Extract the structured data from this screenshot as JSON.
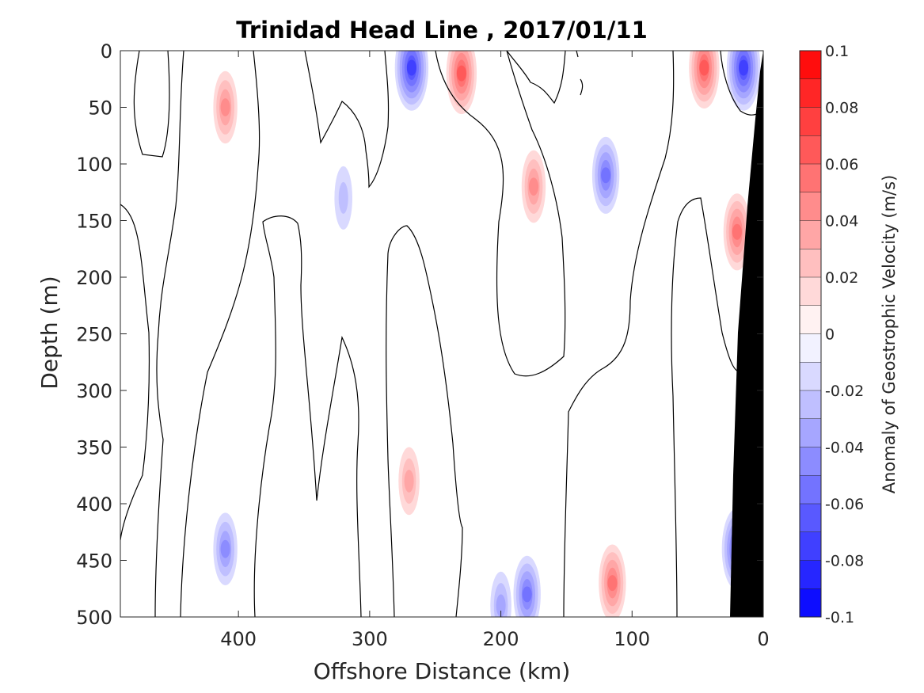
{
  "chart_data": {
    "type": "heatmap",
    "title": "Trinidad Head Line , 2017/01/11",
    "xlabel": "Offshore Distance (km)",
    "ylabel": "Depth (m)",
    "colorbar_label": "Anomaly of Geostrophic Velocity (m/s)",
    "xlim": [
      490,
      0
    ],
    "ylim": [
      500,
      0
    ],
    "x_ticks": [
      400,
      300,
      200,
      100,
      0
    ],
    "y_ticks": [
      0,
      50,
      100,
      150,
      200,
      250,
      300,
      350,
      400,
      450,
      500
    ],
    "colorbar_range": [
      -0.1,
      0.1
    ],
    "colorbar_ticks": [
      "0.1",
      "0.08",
      "0.06",
      "0.04",
      "0.02",
      "0",
      "-0.02",
      "-0.04",
      "-0.06",
      "-0.08",
      "-0.1"
    ],
    "colorbar_levels": 20,
    "colormap": {
      "negative": "#0000ff",
      "zero": "#ffffff",
      "positive": "#ff0000"
    },
    "land_color": "#000000",
    "zero_contour_color": "#000000",
    "features": [
      {
        "x": 410,
        "depth": 50,
        "value": 0.04
      },
      {
        "x": 268,
        "depth": 15,
        "value": -0.075
      },
      {
        "x": 230,
        "depth": 20,
        "value": 0.06
      },
      {
        "x": 175,
        "depth": 120,
        "value": 0.045
      },
      {
        "x": 120,
        "depth": 110,
        "value": -0.05
      },
      {
        "x": 45,
        "depth": 15,
        "value": 0.065
      },
      {
        "x": 15,
        "depth": 15,
        "value": -0.07
      },
      {
        "x": 20,
        "depth": 160,
        "value": 0.05
      },
      {
        "x": 410,
        "depth": 440,
        "value": -0.045
      },
      {
        "x": 270,
        "depth": 380,
        "value": 0.035
      },
      {
        "x": 180,
        "depth": 480,
        "value": -0.05
      },
      {
        "x": 115,
        "depth": 470,
        "value": 0.055
      },
      {
        "x": 20,
        "depth": 440,
        "value": -0.065
      },
      {
        "x": 320,
        "depth": 130,
        "value": -0.025
      },
      {
        "x": 200,
        "depth": 490,
        "value": -0.03
      }
    ]
  }
}
